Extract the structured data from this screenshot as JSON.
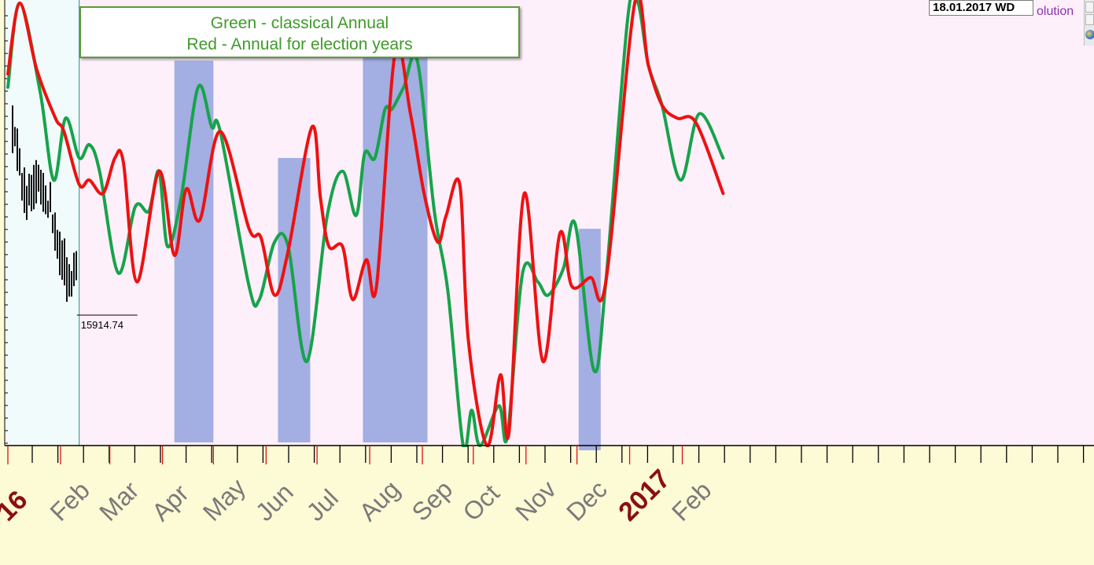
{
  "legend": {
    "line1": "Green - classical Annual",
    "line2": "Red - Annual for election years"
  },
  "header": {
    "date_label": "18.01.2017 WD",
    "evolution_text": "olution"
  },
  "colors": {
    "classical": "#17a34a",
    "election": "#ee1111",
    "highlight": "#a3aee2",
    "price_bars": "#111111",
    "past_bg": "#f2fbfc",
    "future_bg": "#fdf0fb",
    "axis_bg": "#fdfad6",
    "month_label": "#7a7a7a",
    "year_label": "#8b1010"
  },
  "icons": [
    "scroll-up-icon",
    "scroll-down-icon",
    "globe-icon"
  ],
  "chart_data": {
    "type": "line",
    "title": "",
    "xlabel": "",
    "ylabel": "",
    "x_range": [
      "2016-01",
      "2017-02-28"
    ],
    "y_range": [
      0,
      100
    ],
    "x_ticks": [
      {
        "label": "16",
        "x": "2016-01-01",
        "year": true
      },
      {
        "label": "Feb",
        "x": "2016-02-01"
      },
      {
        "label": "Mar",
        "x": "2016-03-01"
      },
      {
        "label": "Apr",
        "x": "2016-04-01"
      },
      {
        "label": "May",
        "x": "2016-05-01"
      },
      {
        "label": "Jun",
        "x": "2016-06-01"
      },
      {
        "label": "Jul",
        "x": "2016-07-01"
      },
      {
        "label": "Aug",
        "x": "2016-08-01"
      },
      {
        "label": "Sep",
        "x": "2016-09-01"
      },
      {
        "label": "Oct",
        "x": "2016-10-01"
      },
      {
        "label": "Nov",
        "x": "2016-11-01"
      },
      {
        "label": "Dec",
        "x": "2016-12-01"
      },
      {
        "label": "2017",
        "x": "2017-01-01",
        "year": true
      },
      {
        "label": "Feb",
        "x": "2017-02-01"
      }
    ],
    "today": "2016-02-12",
    "last_price_label": "15914.74",
    "highlight_ranges": [
      {
        "from": "2016-04-08",
        "to": "2016-05-01",
        "top": 87
      },
      {
        "from": "2016-06-08",
        "to": "2016-06-27",
        "top": 65
      },
      {
        "from": "2016-07-28",
        "to": "2016-09-04",
        "top": 90
      },
      {
        "from": "2016-12-02",
        "to": "2016-12-15",
        "top": 49,
        "below_axis": true
      }
    ],
    "series": [
      {
        "name": "Green - classical Annual",
        "color": "#17a34a",
        "points": [
          [
            "2016-01-01",
            81
          ],
          [
            "2016-01-08",
            100
          ],
          [
            "2016-01-20",
            80
          ],
          [
            "2016-01-28",
            60
          ],
          [
            "2016-02-04",
            74
          ],
          [
            "2016-02-12",
            65
          ],
          [
            "2016-02-18",
            68
          ],
          [
            "2016-02-24",
            62
          ],
          [
            "2016-03-06",
            39
          ],
          [
            "2016-03-16",
            54
          ],
          [
            "2016-03-24",
            53
          ],
          [
            "2016-03-30",
            62
          ],
          [
            "2016-04-04",
            45
          ],
          [
            "2016-04-12",
            56
          ],
          [
            "2016-04-22",
            81
          ],
          [
            "2016-04-30",
            72
          ],
          [
            "2016-05-05",
            71
          ],
          [
            "2016-05-22",
            36
          ],
          [
            "2016-05-28",
            33
          ],
          [
            "2016-06-06",
            46
          ],
          [
            "2016-06-14",
            45
          ],
          [
            "2016-06-25",
            19
          ],
          [
            "2016-07-07",
            52
          ],
          [
            "2016-07-16",
            62
          ],
          [
            "2016-07-24",
            52
          ],
          [
            "2016-07-29",
            66
          ],
          [
            "2016-08-04",
            65
          ],
          [
            "2016-08-10",
            76
          ],
          [
            "2016-08-14",
            76
          ],
          [
            "2016-08-21",
            81
          ],
          [
            "2016-08-29",
            87
          ],
          [
            "2016-09-08",
            53
          ],
          [
            "2016-09-16",
            35
          ],
          [
            "2016-09-25",
            0
          ],
          [
            "2016-09-30",
            8
          ],
          [
            "2016-10-05",
            0
          ],
          [
            "2016-10-16",
            9
          ],
          [
            "2016-10-21",
            2
          ],
          [
            "2016-10-30",
            39
          ],
          [
            "2016-11-08",
            37
          ],
          [
            "2016-11-14",
            34
          ],
          [
            "2016-11-23",
            40
          ],
          [
            "2016-11-30",
            50
          ],
          [
            "2016-12-11",
            17
          ],
          [
            "2016-12-18",
            37
          ],
          [
            "2016-12-31",
            97
          ],
          [
            "2017-01-06",
            100
          ],
          [
            "2017-01-12",
            86
          ],
          [
            "2017-01-20",
            77
          ],
          [
            "2017-01-31",
            60
          ],
          [
            "2017-02-11",
            75
          ],
          [
            "2017-02-25",
            65
          ]
        ]
      },
      {
        "name": "Red - Annual for election years",
        "color": "#ee1111",
        "points": [
          [
            "2016-01-01",
            84
          ],
          [
            "2016-01-08",
            100
          ],
          [
            "2016-01-18",
            85
          ],
          [
            "2016-01-29",
            74
          ],
          [
            "2016-02-03",
            71
          ],
          [
            "2016-02-12",
            59
          ],
          [
            "2016-02-18",
            60
          ],
          [
            "2016-02-26",
            57
          ],
          [
            "2016-03-04",
            65
          ],
          [
            "2016-03-09",
            64
          ],
          [
            "2016-03-17",
            37
          ],
          [
            "2016-03-30",
            62
          ],
          [
            "2016-04-08",
            43
          ],
          [
            "2016-04-15",
            58
          ],
          [
            "2016-04-23",
            51
          ],
          [
            "2016-05-05",
            71
          ],
          [
            "2016-05-22",
            49
          ],
          [
            "2016-05-29",
            47
          ],
          [
            "2016-06-06",
            34
          ],
          [
            "2016-06-14",
            44
          ],
          [
            "2016-06-28",
            72
          ],
          [
            "2016-07-03",
            56
          ],
          [
            "2016-07-08",
            45
          ],
          [
            "2016-07-16",
            45
          ],
          [
            "2016-07-22",
            33
          ],
          [
            "2016-07-30",
            42
          ],
          [
            "2016-08-05",
            36
          ],
          [
            "2016-08-16",
            89
          ],
          [
            "2016-08-25",
            75
          ],
          [
            "2016-09-02",
            57
          ],
          [
            "2016-09-10",
            46
          ],
          [
            "2016-09-15",
            52
          ],
          [
            "2016-09-23",
            59
          ],
          [
            "2016-09-28",
            24
          ],
          [
            "2016-10-09",
            0
          ],
          [
            "2016-10-17",
            16
          ],
          [
            "2016-10-22",
            3
          ],
          [
            "2016-10-31",
            57
          ],
          [
            "2016-11-11",
            19
          ],
          [
            "2016-11-21",
            48
          ],
          [
            "2016-11-28",
            36
          ],
          [
            "2016-12-09",
            38
          ],
          [
            "2016-12-18",
            37
          ],
          [
            "2017-01-04",
            100
          ],
          [
            "2017-01-12",
            86
          ],
          [
            "2017-01-20",
            77
          ],
          [
            "2017-01-29",
            74
          ],
          [
            "2017-02-09",
            73
          ],
          [
            "2017-02-25",
            57
          ]
        ]
      }
    ]
  }
}
